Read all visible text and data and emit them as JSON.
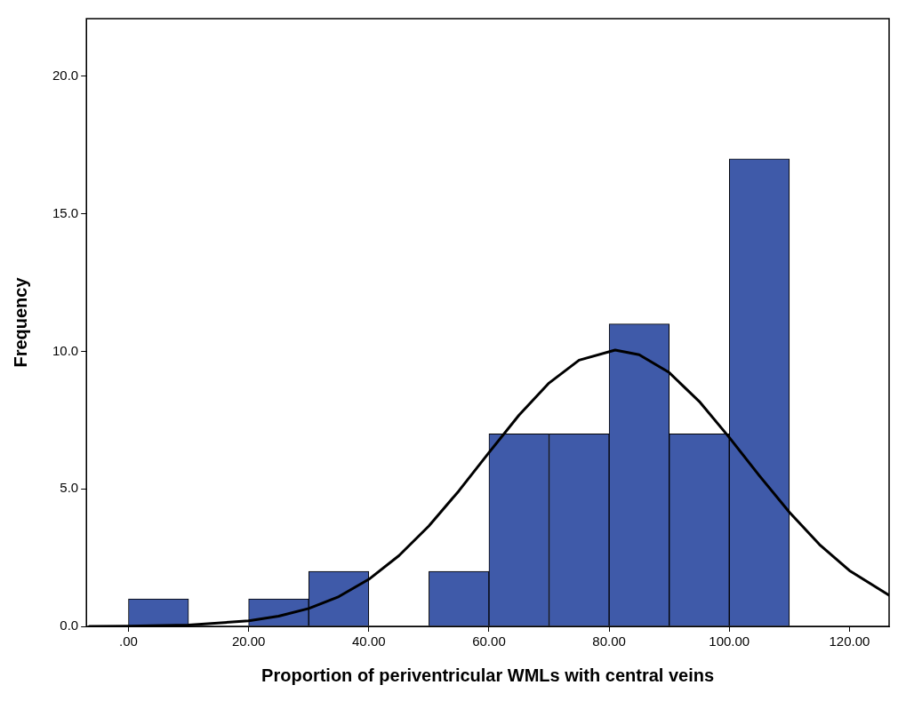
{
  "chart_data": {
    "type": "histogram",
    "xlabel": "Proportion of periventricular WMLs with central veins",
    "ylabel": "Frequency",
    "bins": [
      0,
      10,
      20,
      30,
      40,
      50,
      60,
      70,
      80,
      90,
      100,
      110
    ],
    "series": [
      {
        "type": "histogram",
        "color": "#3f5aa9",
        "values": [
          1,
          0,
          1,
          2,
          0,
          2,
          7,
          7,
          11,
          7,
          17
        ]
      },
      {
        "type": "line",
        "color": "#000000",
        "marker": "none",
        "x": [
          -6.5,
          0,
          10,
          20,
          25,
          30,
          35,
          40,
          45,
          50,
          55,
          60,
          65,
          70,
          75,
          81,
          85,
          90,
          95,
          100,
          105,
          110,
          115,
          120,
          126.6
        ],
        "values": [
          0,
          0.01,
          0.05,
          0.2,
          0.37,
          0.65,
          1.08,
          1.71,
          2.57,
          3.65,
          4.93,
          6.32,
          7.68,
          8.85,
          9.68,
          10.05,
          9.88,
          9.23,
          8.18,
          6.87,
          5.48,
          4.15,
          2.98,
          2.03,
          1.13
        ]
      }
    ],
    "xlim": [
      -7,
      126.6
    ],
    "ylim": [
      0,
      22.1
    ],
    "xticks": [
      {
        "value": 0,
        "label": ".00"
      },
      {
        "value": 20,
        "label": "20.00"
      },
      {
        "value": 40,
        "label": "40.00"
      },
      {
        "value": 60,
        "label": "60.00"
      },
      {
        "value": 80,
        "label": "80.00"
      },
      {
        "value": 100,
        "label": "100.00"
      },
      {
        "value": 120,
        "label": "120.00"
      }
    ],
    "yticks": [
      {
        "value": 0,
        "label": "0.0"
      },
      {
        "value": 5,
        "label": "5.0"
      },
      {
        "value": 10,
        "label": "10.0"
      },
      {
        "value": 15,
        "label": "15.0"
      },
      {
        "value": 20,
        "label": "20.0"
      }
    ],
    "grid": false,
    "legend": false
  }
}
